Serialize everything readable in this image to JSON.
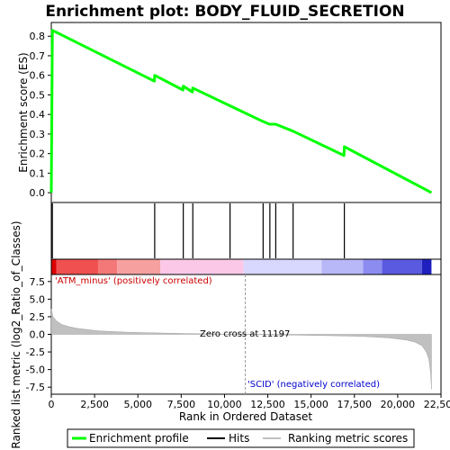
{
  "chart_data": {
    "type": "line",
    "title": "Enrichment plot: BODY_FLUID_SECRETION",
    "top_panel": {
      "ylabel": "Enrichment score (ES)",
      "ylim": [
        -0.05,
        0.87
      ],
      "yticks": [
        0.0,
        0.1,
        0.2,
        0.3,
        0.4,
        0.5,
        0.6,
        0.7,
        0.8
      ],
      "ytick_labels": [
        "0.0",
        "0.1",
        "0.2",
        "0.3",
        "0.4",
        "0.5",
        "0.6",
        "0.7",
        "0.8"
      ],
      "series": [
        {
          "name": "Enrichment profile",
          "color": "#00ff00",
          "x": [
            0,
            60,
            5950,
            5970,
            7600,
            7620,
            8150,
            8170,
            10300,
            12200,
            12600,
            12950,
            13950,
            16900,
            16920,
            21950
          ],
          "y": [
            0.0,
            0.83,
            0.57,
            0.6,
            0.525,
            0.545,
            0.515,
            0.535,
            0.445,
            0.365,
            0.35,
            0.35,
            0.315,
            0.19,
            0.235,
            0.0
          ]
        }
      ]
    },
    "hits": {
      "name": "Hits",
      "color": "#000000",
      "x": [
        60,
        5970,
        7620,
        8170,
        10320,
        12230,
        12620,
        12960,
        13960,
        16920
      ]
    },
    "rank_bar": {
      "segments": [
        {
          "x0": 0,
          "x1": 300,
          "color": "#dd0000"
        },
        {
          "x0": 300,
          "x1": 2700,
          "color": "#f05050"
        },
        {
          "x0": 2700,
          "x1": 3800,
          "color": "#f47878"
        },
        {
          "x0": 3800,
          "x1": 6300,
          "color": "#f7a0a0"
        },
        {
          "x0": 6300,
          "x1": 11100,
          "color": "#fbc8e8"
        },
        {
          "x0": 11100,
          "x1": 15600,
          "color": "#d8d8ff"
        },
        {
          "x0": 15600,
          "x1": 18000,
          "color": "#b8b8f8"
        },
        {
          "x0": 18000,
          "x1": 19100,
          "color": "#8c8cf0"
        },
        {
          "x0": 19100,
          "x1": 21400,
          "color": "#5a5ae0"
        },
        {
          "x0": 21400,
          "x1": 21950,
          "color": "#2020c0"
        }
      ]
    },
    "bottom_panel": {
      "ylabel": "Ranked list metric (log2_Ratio_of_Classes)",
      "ylim": [
        -8.5,
        8.5
      ],
      "yticks": [
        -7.5,
        -5.0,
        -2.5,
        0.0,
        2.5,
        5.0,
        7.5
      ],
      "ytick_labels": [
        "-7.5",
        "-5.0",
        "-2.5",
        "0.0",
        "2.5",
        "5.0",
        "7.5"
      ],
      "series": [
        {
          "name": "Ranking metric scores",
          "color": "#c0c0c0",
          "x": [
            0,
            100,
            300,
            600,
            1000,
            1500,
            2000,
            2700,
            3500,
            4500,
            6000,
            8000,
            11197,
            14000,
            16500,
            18000,
            19500,
            20500,
            21000,
            21400,
            21650,
            21800,
            21900,
            21950
          ],
          "y": [
            3.6,
            2.5,
            1.9,
            1.4,
            1.1,
            0.85,
            0.7,
            0.5,
            0.4,
            0.3,
            0.2,
            0.1,
            0.0,
            -0.1,
            -0.2,
            -0.3,
            -0.5,
            -0.8,
            -1.1,
            -1.6,
            -2.5,
            -3.5,
            -5.5,
            -7.8
          ]
        }
      ],
      "annotations": {
        "positive": "'ATM_minus' (positively correlated)",
        "negative": "'SCID' (negatively correlated)",
        "zero_cross": "Zero cross at 11197"
      },
      "zero_cross_x": 11197
    },
    "xaxis": {
      "label": "Rank in Ordered Dataset",
      "xlim": [
        0,
        22500
      ],
      "ticks": [
        0,
        2500,
        5000,
        7500,
        10000,
        12500,
        15000,
        17500,
        20000,
        22500
      ],
      "tick_labels": [
        "0",
        "2,500",
        "5,000",
        "7,500",
        "10,000",
        "12,500",
        "15,000",
        "17,500",
        "20,000",
        "22,500"
      ]
    },
    "legend": {
      "placement": "bottom",
      "items": [
        {
          "label": "Enrichment profile",
          "color": "#00ff00"
        },
        {
          "label": "Hits",
          "color": "#000000"
        },
        {
          "label": "Ranking metric scores",
          "color": "#c0c0c0"
        }
      ]
    }
  }
}
